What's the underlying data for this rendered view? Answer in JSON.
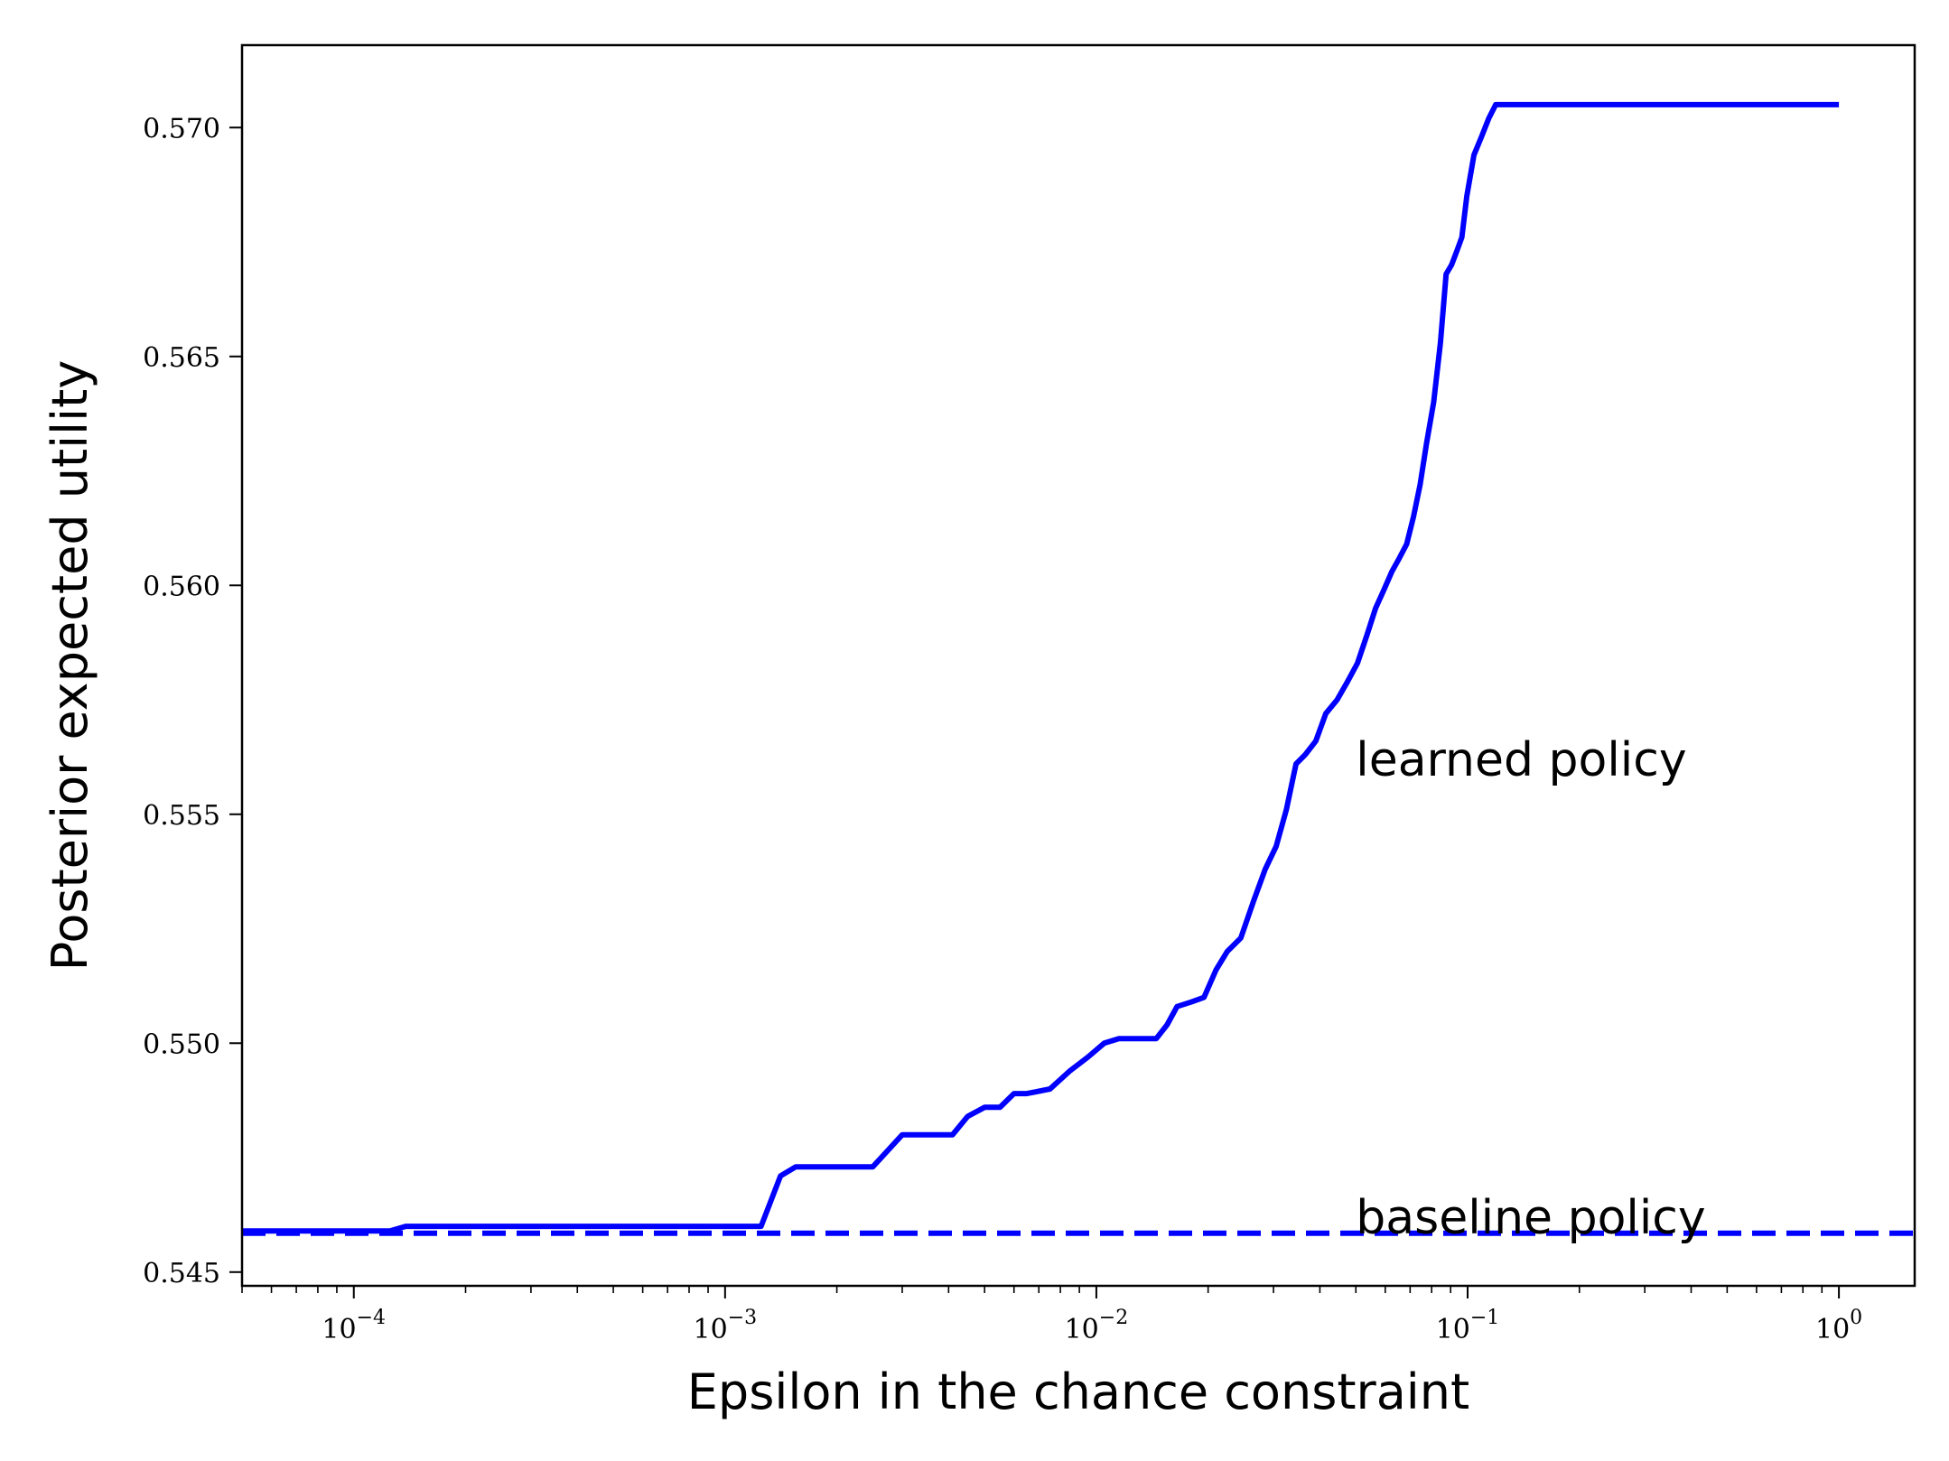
{
  "chart_data": {
    "type": "line",
    "title": "",
    "xlabel": "Epsilon in the chance constraint",
    "ylabel": "Posterior expected utility",
    "x_scale": "log",
    "xlim": [
      5e-05,
      1.6
    ],
    "ylim": [
      0.5447,
      0.5718
    ],
    "grid": false,
    "legend": "none",
    "x_ticks": [
      {
        "value": 0.0001,
        "base": "10",
        "exp": "−4"
      },
      {
        "value": 0.001,
        "base": "10",
        "exp": "−3"
      },
      {
        "value": 0.01,
        "base": "10",
        "exp": "−2"
      },
      {
        "value": 0.1,
        "base": "10",
        "exp": "−1"
      },
      {
        "value": 1,
        "base": "10",
        "exp": "0"
      }
    ],
    "y_ticks": [
      {
        "value": 0.545,
        "label": "0.545"
      },
      {
        "value": 0.55,
        "label": "0.550"
      },
      {
        "value": 0.555,
        "label": "0.555"
      },
      {
        "value": 0.56,
        "label": "0.560"
      },
      {
        "value": 0.565,
        "label": "0.565"
      },
      {
        "value": 0.57,
        "label": "0.570"
      }
    ],
    "series": [
      {
        "color": "#0000ff",
        "style": "solid",
        "x": [
          5e-05,
          0.000125,
          0.000138,
          0.0002,
          0.0005,
          0.001,
          0.00125,
          0.00141,
          0.00155,
          0.002,
          0.0025,
          0.003,
          0.0035,
          0.0041,
          0.0045,
          0.005,
          0.0055,
          0.006,
          0.0065,
          0.0075,
          0.0085,
          0.0095,
          0.0105,
          0.0115,
          0.0125,
          0.0135,
          0.0145,
          0.0155,
          0.0165,
          0.018,
          0.0195,
          0.021,
          0.0225,
          0.0245,
          0.0265,
          0.0285,
          0.0305,
          0.0325,
          0.0345,
          0.0365,
          0.039,
          0.0415,
          0.0445,
          0.0475,
          0.0505,
          0.0535,
          0.0565,
          0.0595,
          0.0625,
          0.0655,
          0.0685,
          0.0715,
          0.0745,
          0.0775,
          0.081,
          0.0845,
          0.0875,
          0.0905,
          0.0935,
          0.0965,
          0.0995,
          0.104,
          0.109,
          0.114,
          0.119,
          0.124,
          0.129,
          0.134,
          0.2,
          0.5,
          1.0
        ],
        "y": [
          0.5459,
          0.5459,
          0.546,
          0.546,
          0.546,
          0.546,
          0.546,
          0.5471,
          0.5473,
          0.5473,
          0.5473,
          0.548,
          0.548,
          0.548,
          0.5484,
          0.5486,
          0.5486,
          0.5489,
          0.5489,
          0.549,
          0.5494,
          0.5497,
          0.55,
          0.5501,
          0.5501,
          0.5501,
          0.5501,
          0.5504,
          0.5508,
          0.5509,
          0.551,
          0.5516,
          0.552,
          0.5523,
          0.5531,
          0.5538,
          0.5543,
          0.5551,
          0.5561,
          0.5563,
          0.5566,
          0.5572,
          0.5575,
          0.5579,
          0.5583,
          0.5589,
          0.5595,
          0.5599,
          0.5603,
          0.5606,
          0.5609,
          0.5615,
          0.5622,
          0.5631,
          0.564,
          0.5653,
          0.5668,
          0.567,
          0.5673,
          0.5676,
          0.5685,
          0.5694,
          0.5698,
          0.5702,
          0.5705,
          0.5705,
          0.5705,
          0.5705,
          0.5705,
          0.5705,
          0.5705
        ]
      },
      {
        "color": "#0000ff",
        "style": "dashed",
        "x": [
          5e-05,
          1.6
        ],
        "y": [
          0.54585,
          0.54585
        ]
      }
    ],
    "annotations": [
      {
        "text": "learned policy",
        "x": 0.05,
        "y": 0.5562
      },
      {
        "text": "baseline policy",
        "x": 0.05,
        "y": 0.5462
      }
    ]
  }
}
